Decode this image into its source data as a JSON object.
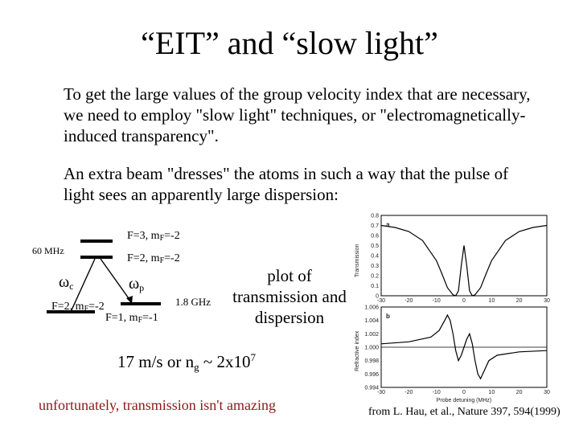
{
  "slide": {
    "title": "“EIT” and “slow light”",
    "para1": "To get the large values of the group velocity index that are necessary, we need to employ \"slow light\" techniques, or \"electromagnetically-induced transparency\".",
    "para2": "An extra beam \"dresses\" the atoms in such a way that the pulse of light sees an apparently large dispersion:",
    "plot_label": "plot of transmission and dispersion",
    "ng_prefix": "17 m/s or n",
    "ng_sub": "g",
    "ng_mid": " ~ 2x10",
    "ng_sup": "7",
    "unfortunately": "unfortunately, transmission isn't amazing",
    "citation": "from L. Hau, et al., Nature 397, 594(1999)"
  },
  "level_diagram": {
    "top_label_main": "F=3, m",
    "top_label_sub": "F",
    "top_label_end": "=-2",
    "upper_label_main": "F=2, m",
    "upper_label_sub": "F",
    "upper_label_end": "=-2",
    "splitting": "60 MHz",
    "omega_c": "ω",
    "omega_c_sub": "c",
    "omega_p": "ω",
    "omega_p_sub": "p",
    "left_ground_main": "F=2, m",
    "left_ground_sub": "F",
    "left_ground_end": "=-2",
    "right_ground_main": "F=1, m",
    "right_ground_sub": "F",
    "right_ground_end": "=-1",
    "ground_splitting": "1.8 GHz"
  },
  "chart_data": [
    {
      "type": "line",
      "panel_label": "a",
      "ylabel": "Transmission",
      "xlabel": "",
      "xlim": [
        -30,
        30
      ],
      "ylim": [
        0,
        0.8
      ],
      "x_ticks": [
        "-30",
        "-20",
        "-10",
        "0",
        "10",
        "20",
        "30"
      ],
      "y_ticks": [
        "0",
        "0.1",
        "0.2",
        "0.3",
        "0.4",
        "0.5",
        "0.6",
        "0.7",
        "0.8"
      ],
      "x": [
        -30,
        -25,
        -20,
        -15,
        -10,
        -8,
        -6,
        -4,
        -3,
        -2,
        -1,
        0,
        1,
        2,
        3,
        4,
        6,
        8,
        10,
        15,
        20,
        25,
        30
      ],
      "y": [
        0.7,
        0.68,
        0.64,
        0.55,
        0.35,
        0.22,
        0.08,
        0.01,
        0.0,
        0.05,
        0.3,
        0.5,
        0.3,
        0.05,
        0.0,
        0.01,
        0.08,
        0.22,
        0.35,
        0.55,
        0.64,
        0.68,
        0.7
      ]
    },
    {
      "type": "line",
      "panel_label": "b",
      "ylabel": "Refractive index",
      "xlabel": "Probe detuning (MHz)",
      "xlim": [
        -30,
        30
      ],
      "ylim": [
        0.994,
        1.006
      ],
      "x_ticks": [
        "-30",
        "-20",
        "-10",
        "0",
        "10",
        "20",
        "30"
      ],
      "y_ticks": [
        "1.006",
        "1.004",
        "1.002",
        "1.000",
        "0.998",
        "0.996",
        "0.994"
      ],
      "x": [
        -30,
        -20,
        -12,
        -9,
        -7,
        -6,
        -5,
        -4,
        -3,
        -2,
        -1,
        0,
        1,
        2,
        3,
        4,
        5,
        6,
        7,
        9,
        12,
        20,
        30
      ],
      "y": [
        1.0005,
        1.0008,
        1.0015,
        1.0025,
        1.004,
        1.0048,
        1.004,
        1.002,
        0.9995,
        0.998,
        0.9988,
        1.0,
        1.0012,
        1.002,
        1.0005,
        0.998,
        0.996,
        0.9953,
        0.9962,
        0.998,
        0.9988,
        0.9993,
        0.9995
      ]
    }
  ]
}
